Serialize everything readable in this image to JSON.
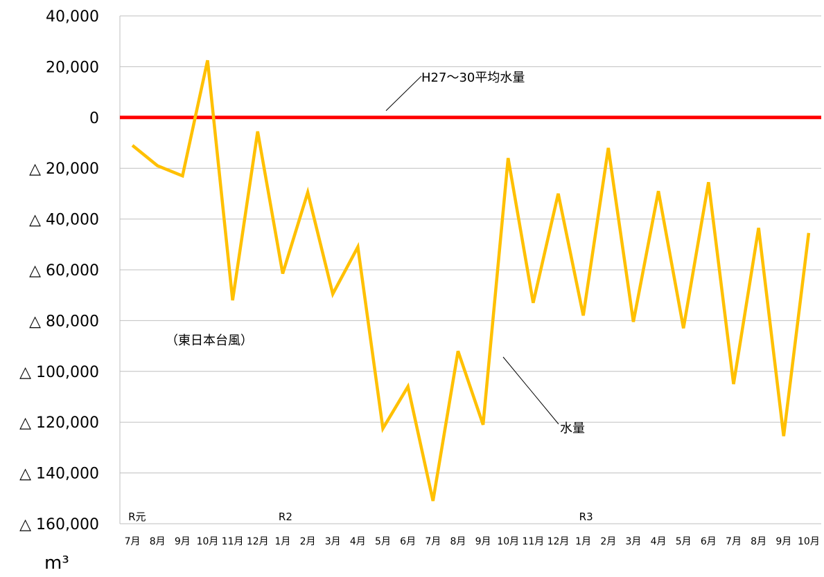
{
  "chart_data": {
    "type": "line",
    "unit": "m³",
    "y_tick_labels": [
      "40,000",
      "20,000",
      "0",
      "△ 20,000",
      "△ 40,000",
      "△ 60,000",
      "△ 80,000",
      "△ 100,000",
      "△ 120,000",
      "△ 140,000",
      "△ 160,000"
    ],
    "y_ticks": [
      40000,
      20000,
      0,
      -20000,
      -40000,
      -60000,
      -80000,
      -100000,
      -120000,
      -140000,
      -160000
    ],
    "ylim": [
      -160000,
      40000
    ],
    "grid": true,
    "categories": [
      "7月",
      "8月",
      "9月",
      "10月",
      "11月",
      "12月",
      "1月",
      "2月",
      "3月",
      "4月",
      "5月",
      "6月",
      "7月",
      "8月",
      "9月",
      "10月",
      "11月",
      "12月",
      "1月",
      "2月",
      "3月",
      "4月",
      "5月",
      "6月",
      "7月",
      "8月",
      "9月",
      "10月"
    ],
    "era_labels": [
      {
        "text": "R元",
        "category_index": 0
      },
      {
        "text": "R2",
        "category_index": 6
      },
      {
        "text": "R3",
        "category_index": 18
      }
    ],
    "series": [
      {
        "name": "水量",
        "color": "#FFC000",
        "values": [
          -11000,
          -19000,
          -23000,
          22500,
          -72000,
          -5500,
          -61500,
          -29500,
          -69500,
          -51000,
          -122500,
          -106000,
          -151000,
          -92000,
          -121000,
          -16000,
          -73000,
          -30000,
          -78000,
          -12000,
          -80500,
          -29000,
          -83000,
          -25500,
          -105000,
          -43500,
          -125500,
          -45500
        ]
      },
      {
        "name": "H27～30平均水量",
        "color": "#FF0000",
        "values": [
          0,
          0,
          0,
          0,
          0,
          0,
          0,
          0,
          0,
          0,
          0,
          0,
          0,
          0,
          0,
          0,
          0,
          0,
          0,
          0,
          0,
          0,
          0,
          0,
          0,
          0,
          0,
          0
        ]
      }
    ],
    "annotations": [
      {
        "text": "H27～30平均水量",
        "series": "H27～30平均水量"
      },
      {
        "text": "水量",
        "series": "水量"
      },
      {
        "text": "（東日本台風）",
        "category_index": 3
      }
    ]
  }
}
